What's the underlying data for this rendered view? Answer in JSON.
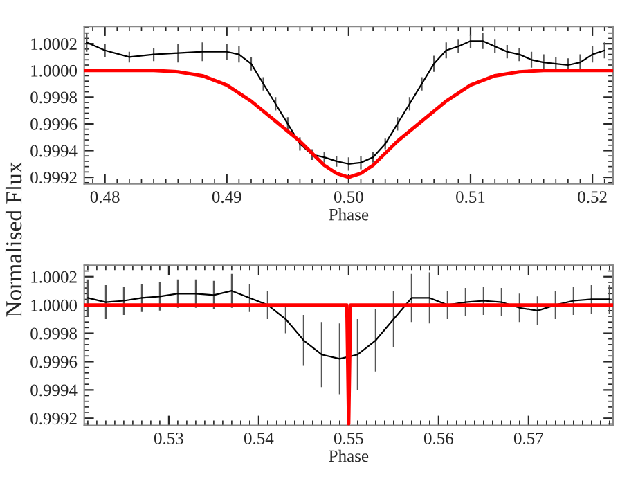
{
  "chart_data": [
    {
      "type": "line",
      "xlabel": "Phase",
      "ylabel": "Normalised Flux",
      "xlim": [
        0.4783,
        0.5217
      ],
      "ylim": [
        0.99915,
        1.00033
      ],
      "xticks": [
        0.48,
        0.49,
        {
          "value": 0.5,
          "label": "0.50"
        },
        0.51,
        0.52
      ],
      "yticks": [
        {
          "value": 0.9992,
          "label": "0.9992"
        },
        {
          "value": 0.9994,
          "label": "0.9994"
        },
        {
          "value": 0.9996,
          "label": "0.9996"
        },
        {
          "value": 0.9998,
          "label": "0.9998"
        },
        {
          "value": 1.0,
          "label": "1.0000"
        },
        {
          "value": 1.0002,
          "label": "1.0002"
        }
      ],
      "marker": "none",
      "line_style": "solid",
      "grid": false,
      "legend": false,
      "series": [
        {
          "color": "#000000",
          "x": [
            0.4785,
            0.48,
            0.482,
            0.484,
            0.486,
            0.488,
            0.49,
            0.491,
            0.492,
            0.493,
            0.494,
            0.495,
            0.496,
            0.497,
            0.498,
            0.499,
            0.5,
            0.501,
            0.502,
            0.503,
            0.504,
            0.505,
            0.506,
            0.507,
            0.508,
            0.509,
            0.51,
            0.511,
            0.512,
            0.513,
            0.514,
            0.515,
            0.516,
            0.517,
            0.518,
            0.519,
            0.52,
            0.521
          ],
          "values": [
            1.00021,
            1.00015,
            1.0001,
            1.00012,
            1.00013,
            1.00014,
            1.00014,
            1.00012,
            1.00005,
            0.9999,
            0.99975,
            0.9996,
            0.99945,
            0.99937,
            0.99935,
            0.99932,
            0.9993,
            0.99931,
            0.99935,
            0.99945,
            0.9996,
            0.99975,
            0.9999,
            1.00005,
            1.00015,
            1.00018,
            1.00022,
            1.00022,
            1.00018,
            1.00014,
            1.00012,
            1.00008,
            1.00006,
            1.00005,
            1.00004,
            1.00006,
            1.00012,
            1.00015
          ],
          "errors": [
            7e-05,
            5e-05,
            4e-05,
            5e-05,
            7e-05,
            7e-05,
            6e-05,
            6e-05,
            5e-05,
            5e-05,
            5e-05,
            5e-05,
            5e-05,
            4e-05,
            4e-05,
            4e-05,
            5e-05,
            5e-05,
            4e-05,
            4e-05,
            5e-05,
            5e-05,
            5e-05,
            6e-05,
            6e-05,
            5e-05,
            5e-05,
            6e-05,
            5e-05,
            5e-05,
            5e-05,
            6e-05,
            6e-05,
            5e-05,
            5e-05,
            6e-05,
            6e-05,
            6e-05
          ]
        },
        {
          "color": "#ff0000",
          "x": [
            0.4783,
            0.484,
            0.486,
            0.488,
            0.49,
            0.492,
            0.494,
            0.496,
            0.498,
            0.499,
            0.5,
            0.501,
            0.502,
            0.504,
            0.506,
            0.508,
            0.51,
            0.512,
            0.514,
            0.516,
            0.5217
          ],
          "values": [
            1.0,
            1.0,
            0.99999,
            0.99996,
            0.99989,
            0.99977,
            0.99962,
            0.99947,
            0.99929,
            0.99923,
            0.9992,
            0.99923,
            0.99929,
            0.99947,
            0.99962,
            0.99977,
            0.99989,
            0.99996,
            0.99999,
            1.0,
            1.0
          ]
        }
      ]
    },
    {
      "type": "line",
      "xlabel": "Phase",
      "xlim": [
        0.5206,
        0.5794
      ],
      "ylim": [
        0.99915,
        1.00028
      ],
      "xticks": [
        0.53,
        0.54,
        0.55,
        0.56,
        0.57
      ],
      "yticks": [
        {
          "value": 0.9992,
          "label": "0.9992"
        },
        {
          "value": 0.9994,
          "label": "0.9994"
        },
        {
          "value": 0.9996,
          "label": "0.9996"
        },
        {
          "value": 0.9998,
          "label": "0.9998"
        },
        {
          "value": 1.0,
          "label": "1.0000"
        },
        {
          "value": 1.0002,
          "label": "1.0002"
        }
      ],
      "marker": "none",
      "line_style": "solid",
      "grid": false,
      "legend": false,
      "series": [
        {
          "color": "#000000",
          "x": [
            0.521,
            0.523,
            0.525,
            0.527,
            0.529,
            0.531,
            0.533,
            0.535,
            0.537,
            0.539,
            0.541,
            0.543,
            0.545,
            0.547,
            0.549,
            0.551,
            0.553,
            0.555,
            0.557,
            0.559,
            0.561,
            0.563,
            0.565,
            0.567,
            0.569,
            0.571,
            0.573,
            0.575,
            0.577,
            0.579
          ],
          "values": [
            1.00005,
            1.00002,
            1.00003,
            1.00005,
            1.00006,
            1.00008,
            1.00008,
            1.00007,
            1.0001,
            1.00005,
            1.0,
            0.9999,
            0.99975,
            0.99965,
            0.99962,
            0.99965,
            0.99975,
            0.9999,
            1.00005,
            1.00005,
            1.0,
            1.00002,
            1.00003,
            1.00002,
            0.99998,
            0.99996,
            1.0,
            1.00003,
            1.00004,
            1.00004
          ],
          "errors": [
            0.00013,
            0.00012,
            0.0001,
            0.0001,
            0.0001,
            0.0001,
            0.0001,
            0.0001,
            0.00012,
            0.0001,
            0.0001,
            0.0001,
            0.00018,
            0.00023,
            0.00025,
            0.00025,
            0.00022,
            0.0002,
            0.00017,
            0.00018,
            0.0001,
            0.0001,
            0.0001,
            0.0001,
            0.0001,
            0.0001,
            0.0001,
            0.0001,
            0.0001,
            0.0001
          ]
        },
        {
          "color": "#ff0000",
          "x": [
            0.5206,
            0.5498,
            0.55,
            0.5502,
            0.5794
          ],
          "values": [
            1.0,
            1.0,
            0.99916,
            1.0,
            1.0
          ]
        }
      ]
    }
  ]
}
